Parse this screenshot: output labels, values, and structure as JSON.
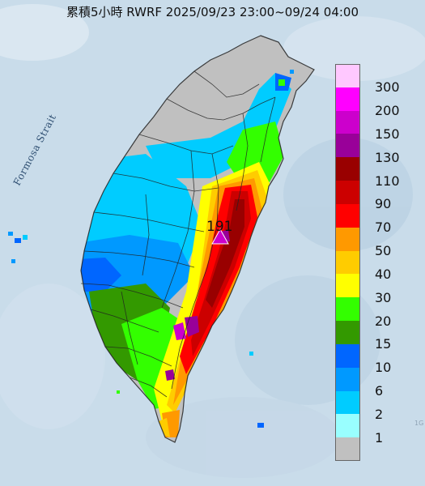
{
  "title": "累積5小時 RWRF 2025/09/23 23:00~09/24 04:00",
  "water_label": "Formosa Strait",
  "max_value": "191",
  "corner_mark": "1G",
  "legend": {
    "items": [
      {
        "label": "300",
        "color": "#ffc8ff"
      },
      {
        "label": "200",
        "color": "#ff00ff"
      },
      {
        "label": "150",
        "color": "#cc00cc"
      },
      {
        "label": "130",
        "color": "#990099"
      },
      {
        "label": "110",
        "color": "#990000"
      },
      {
        "label": "90",
        "color": "#cc0000"
      },
      {
        "label": "70",
        "color": "#ff0000"
      },
      {
        "label": "50",
        "color": "#ff9900"
      },
      {
        "label": "40",
        "color": "#ffcc00"
      },
      {
        "label": "30",
        "color": "#ffff00"
      },
      {
        "label": "20",
        "color": "#33ff00"
      },
      {
        "label": "15",
        "color": "#339900"
      },
      {
        "label": "10",
        "color": "#0066ff"
      },
      {
        "label": "6",
        "color": "#0099ff"
      },
      {
        "label": "2",
        "color": "#00ccff"
      },
      {
        "label": "1",
        "color": "#99ffff"
      },
      {
        "label": "",
        "color": "#c0c0c0"
      }
    ]
  },
  "colors": {
    "sea": "#c9dcea",
    "land_base": "#c0c0c0",
    "boundary": "#222222"
  }
}
